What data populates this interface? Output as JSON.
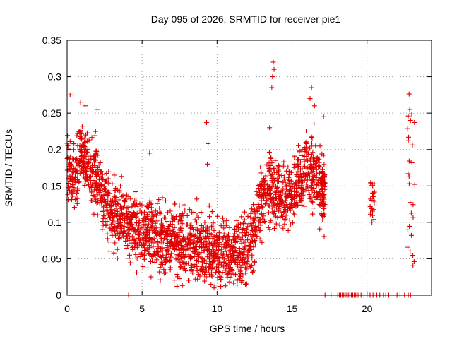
{
  "chart_data": {
    "type": "scatter",
    "title": "Day 095 of 2026, SRMTID for receiver pie1",
    "xlabel": "GPS time / hours",
    "ylabel": "SRMTID / TECUs",
    "xlim": [
      0,
      24.3
    ],
    "ylim": [
      0,
      0.35
    ],
    "xticks": [
      0,
      5,
      10,
      15,
      20
    ],
    "yticks": [
      0,
      0.05,
      0.1,
      0.15,
      0.2,
      0.25,
      0.3,
      0.35
    ],
    "grid": true,
    "marker": "+",
    "marker_color": "#e00000",
    "series": [
      {
        "name": "SRMTID",
        "profile": [
          {
            "x": 0.0,
            "y": 0.18
          },
          {
            "x": 0.5,
            "y": 0.16
          },
          {
            "x": 1.0,
            "y": 0.2
          },
          {
            "x": 1.5,
            "y": 0.17
          },
          {
            "x": 2.0,
            "y": 0.16
          },
          {
            "x": 2.5,
            "y": 0.13
          },
          {
            "x": 3.0,
            "y": 0.11
          },
          {
            "x": 3.5,
            "y": 0.11
          },
          {
            "x": 4.0,
            "y": 0.1
          },
          {
            "x": 4.5,
            "y": 0.09
          },
          {
            "x": 5.0,
            "y": 0.085
          },
          {
            "x": 5.5,
            "y": 0.08
          },
          {
            "x": 6.0,
            "y": 0.075
          },
          {
            "x": 6.5,
            "y": 0.075
          },
          {
            "x": 7.0,
            "y": 0.08
          },
          {
            "x": 7.5,
            "y": 0.07
          },
          {
            "x": 8.0,
            "y": 0.065
          },
          {
            "x": 8.5,
            "y": 0.07
          },
          {
            "x": 9.0,
            "y": 0.065
          },
          {
            "x": 9.5,
            "y": 0.06
          },
          {
            "x": 10.0,
            "y": 0.06
          },
          {
            "x": 10.5,
            "y": 0.055
          },
          {
            "x": 11.0,
            "y": 0.055
          },
          {
            "x": 11.5,
            "y": 0.06
          },
          {
            "x": 12.0,
            "y": 0.065
          },
          {
            "x": 12.5,
            "y": 0.09
          },
          {
            "x": 13.0,
            "y": 0.13
          },
          {
            "x": 13.5,
            "y": 0.15
          },
          {
            "x": 14.0,
            "y": 0.14
          },
          {
            "x": 14.5,
            "y": 0.13
          },
          {
            "x": 15.0,
            "y": 0.14
          },
          {
            "x": 15.5,
            "y": 0.15
          },
          {
            "x": 16.0,
            "y": 0.18
          },
          {
            "x": 16.5,
            "y": 0.17
          },
          {
            "x": 17.0,
            "y": 0.15
          },
          {
            "x": 17.2,
            "y": 0.14
          }
        ],
        "spread": 0.035,
        "spikes": [
          {
            "x": 0.2,
            "y": 0.275
          },
          {
            "x": 0.9,
            "y": 0.265
          },
          {
            "x": 1.2,
            "y": 0.26
          },
          {
            "x": 2.0,
            "y": 0.255
          },
          {
            "x": 5.5,
            "y": 0.195
          },
          {
            "x": 9.3,
            "y": 0.237
          },
          {
            "x": 9.4,
            "y": 0.208
          },
          {
            "x": 9.35,
            "y": 0.18
          },
          {
            "x": 9.8,
            "y": 0.01
          },
          {
            "x": 13.5,
            "y": 0.23
          },
          {
            "x": 13.75,
            "y": 0.32
          },
          {
            "x": 13.8,
            "y": 0.31
          },
          {
            "x": 13.7,
            "y": 0.3
          },
          {
            "x": 13.65,
            "y": 0.285
          },
          {
            "x": 16.3,
            "y": 0.285
          },
          {
            "x": 16.2,
            "y": 0.27
          },
          {
            "x": 16.5,
            "y": 0.26
          },
          {
            "x": 17.1,
            "y": 0.245
          }
        ],
        "clusters": [
          {
            "x_from": 20.2,
            "x_to": 20.5,
            "y_from": 0.1,
            "y_to": 0.155
          },
          {
            "x_from": 22.7,
            "x_to": 23.2,
            "y_from": 0.04,
            "y_to": 0.29
          }
        ],
        "zero_points": [
          4.1,
          17.2,
          17.6,
          18.05,
          18.15,
          18.25,
          18.35,
          18.45,
          18.55,
          18.65,
          18.75,
          18.85,
          18.95,
          19.05,
          19.15,
          19.25,
          19.35,
          19.45,
          19.6,
          19.8,
          20.0,
          20.2,
          20.4,
          20.65,
          20.85,
          21.1,
          21.25,
          21.45,
          22.0,
          22.2,
          22.5,
          22.75,
          22.9
        ]
      }
    ]
  }
}
